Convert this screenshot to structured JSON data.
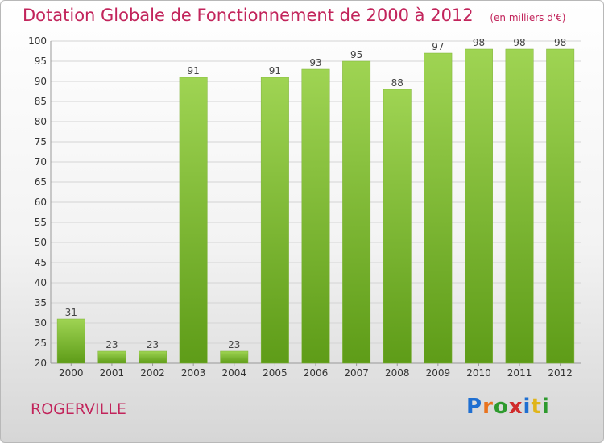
{
  "header": {
    "title": "Dotation Globale de Fonctionnement de 2000 à 2012",
    "unit": "(en milliers d'€)"
  },
  "footer": {
    "commune": "ROGERVILLE",
    "logo_text": "Proxiti",
    "logo_colors": [
      "#1f6fd1",
      "#e9731e",
      "#2e9a2e",
      "#d02b2b",
      "#1f6fd1",
      "#e0b51a",
      "#2e9a2e"
    ]
  },
  "colors": {
    "title": "#c2245b",
    "bar_top": "#9fd453",
    "bar_bottom": "#5e9c18",
    "grid": "#d4d4d4"
  },
  "chart_data": {
    "type": "bar",
    "categories": [
      "2000",
      "2001",
      "2002",
      "2003",
      "2004",
      "2005",
      "2006",
      "2007",
      "2008",
      "2009",
      "2010",
      "2011",
      "2012"
    ],
    "values": [
      31,
      23,
      23,
      91,
      23,
      91,
      93,
      95,
      88,
      97,
      98,
      98,
      98
    ],
    "data_labels": [
      "31",
      "23",
      "23",
      "91",
      "23",
      "91",
      "93",
      "95",
      "88",
      "97",
      "98",
      "98",
      "98"
    ],
    "ylim": [
      20,
      100
    ],
    "yticks": [
      20,
      25,
      30,
      35,
      40,
      45,
      50,
      55,
      60,
      65,
      70,
      75,
      80,
      85,
      90,
      95,
      100
    ],
    "grid": true,
    "xlabel": "",
    "ylabel": ""
  }
}
